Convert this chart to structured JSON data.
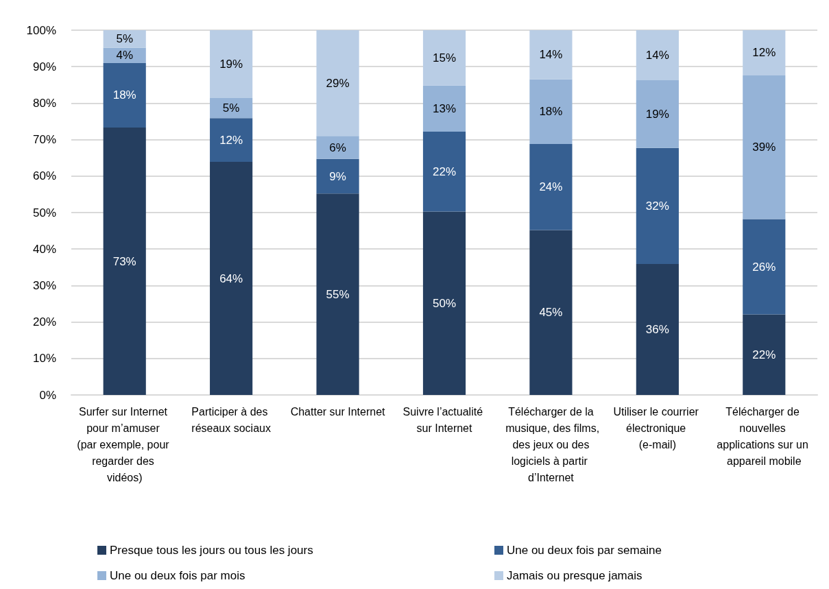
{
  "chart_data": {
    "type": "bar",
    "stacked": true,
    "categories": [
      "Surfer sur Internet pour m’amuser (par exemple, pour regarder des vidéos)",
      "Participer à des réseaux sociaux",
      "Chatter sur Internet",
      "Suivre l’actualité sur Internet",
      "Télécharger de la musique, des films, des jeux ou des logiciels à partir d’Internet",
      "Utiliser le courrier électronique (e-mail)",
      "Télécharger de nouvelles applications sur un appareil mobile"
    ],
    "series": [
      {
        "name": "Presque tous les jours ou tous les jours",
        "color": "#253e5f",
        "values": [
          73.3,
          63.9,
          55.2,
          50.3,
          45.2,
          35.9,
          22.1
        ],
        "value_labels": [
          "73%",
          "64%",
          "55%",
          "50%",
          "45%",
          "36%",
          "22%"
        ]
      },
      {
        "name": "Une ou deux fois par semaine",
        "color": "#365f91",
        "values": [
          17.7,
          12.0,
          9.5,
          21.9,
          23.6,
          31.8,
          26.1
        ],
        "value_labels": [
          "18%",
          "12%",
          "9%",
          "22%",
          "24%",
          "32%",
          "26%"
        ]
      },
      {
        "name": "Une ou deux fois par mois",
        "color": "#95b3d7",
        "values": [
          4.2,
          5.5,
          6.3,
          12.6,
          17.7,
          18.6,
          39.4
        ],
        "value_labels": [
          "4%",
          "5%",
          "6%",
          "13%",
          "18%",
          "19%",
          "39%"
        ]
      },
      {
        "name": "Jamais ou presque jamais",
        "color": "#b9cde5",
        "values": [
          4.8,
          18.6,
          29.0,
          15.2,
          13.5,
          13.7,
          12.4
        ],
        "value_labels": [
          "5%",
          "19%",
          "29%",
          "15%",
          "14%",
          "14%",
          "12%"
        ]
      }
    ],
    "ylim": [
      0,
      100
    ],
    "yticks": [
      {
        "value": 0,
        "label": "0%"
      },
      {
        "value": 10,
        "label": "10%"
      },
      {
        "value": 20,
        "label": "20%"
      },
      {
        "value": 30,
        "label": "30%"
      },
      {
        "value": 40,
        "label": "40%"
      },
      {
        "value": 50,
        "label": "50%"
      },
      {
        "value": 60,
        "label": "60%"
      },
      {
        "value": 70,
        "label": "70%"
      },
      {
        "value": 80,
        "label": "80%"
      },
      {
        "value": 90,
        "label": "90%"
      },
      {
        "value": 100,
        "label": "100%"
      }
    ],
    "grid": "y",
    "legend": "bottom"
  }
}
